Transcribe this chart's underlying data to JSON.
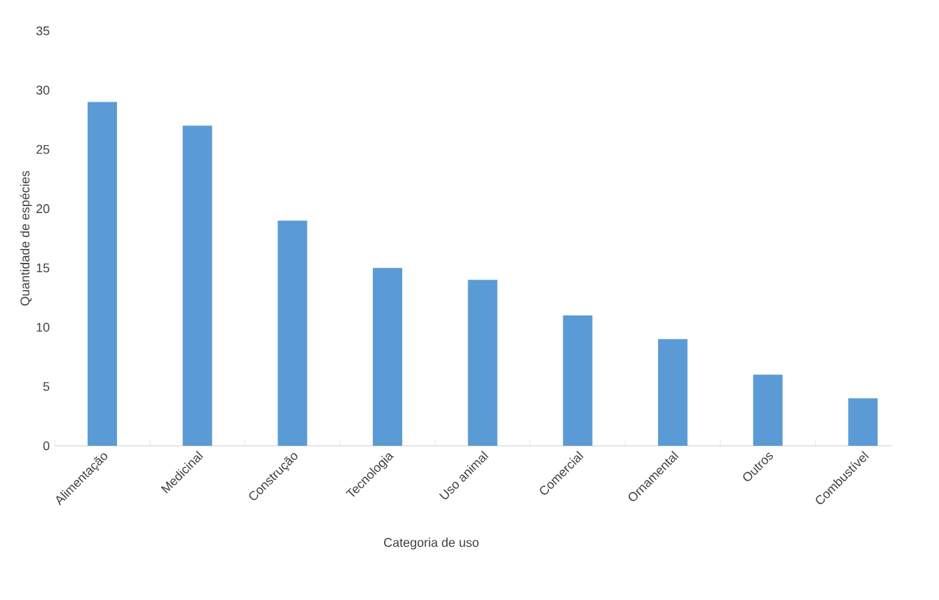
{
  "chart_data": {
    "type": "bar",
    "xlabel": "Categoria de uso",
    "ylabel": "Quantidade de espécies",
    "categories": [
      "Alimentação",
      "Medicinal",
      "Construção",
      "Tecnologia",
      "Uso animal",
      "Comercial",
      "Ornamental",
      "Outros",
      "Combustível"
    ],
    "values": [
      29,
      27,
      19,
      15,
      14,
      11,
      9,
      6,
      4
    ],
    "color": "#5b9bd5",
    "ylim": [
      0,
      35
    ],
    "yticks": [
      0,
      5,
      10,
      15,
      20,
      25,
      30,
      35
    ],
    "grid": false
  }
}
